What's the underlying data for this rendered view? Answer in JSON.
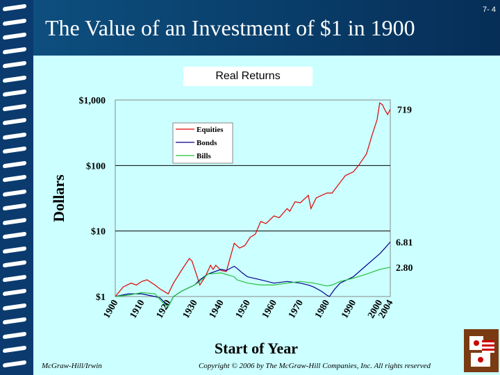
{
  "slide": {
    "title": "The Value of an Investment of $1 in 1900",
    "number": "7- 4",
    "subtitle": "Real Returns",
    "footer_left": "McGraw-Hill/Irwin",
    "footer_right": "Copyright © 2006 by The McGraw-Hill Companies, Inc. All rights reserved"
  },
  "chart_data": {
    "type": "line",
    "xlabel": "Start of Year",
    "ylabel": "Dollars",
    "yscale": "log",
    "ylim": [
      1,
      1000
    ],
    "xlim": [
      1900,
      2004
    ],
    "yticks": [
      "$1",
      "$10",
      "$100",
      "$1,000"
    ],
    "xticks": [
      "1900",
      "1910",
      "1920",
      "1930",
      "1940",
      "1950",
      "1960",
      "1970",
      "1980",
      "1990",
      "2000",
      "2004"
    ],
    "legend": {
      "position": "top-left",
      "entries": [
        "Equities",
        "Bonds",
        "Bills"
      ]
    },
    "end_labels": [
      "719",
      "6.81",
      "2.80"
    ],
    "series": [
      {
        "name": "Equities",
        "color": "#e00000",
        "x": [
          1900,
          1903,
          1906,
          1908,
          1910,
          1912,
          1915,
          1917,
          1920,
          1922,
          1925,
          1928,
          1929,
          1931,
          1932,
          1934,
          1936,
          1937,
          1938,
          1940,
          1942,
          1945,
          1947,
          1949,
          1951,
          1953,
          1955,
          1957,
          1960,
          1962,
          1965,
          1966,
          1968,
          1970,
          1973,
          1974,
          1976,
          1980,
          1982,
          1985,
          1987,
          1990,
          1992,
          1995,
          1997,
          1999,
          2000,
          2001,
          2002,
          2003,
          2004
        ],
        "y": [
          1.0,
          1.4,
          1.6,
          1.5,
          1.7,
          1.8,
          1.5,
          1.3,
          1.1,
          1.6,
          2.5,
          3.8,
          3.5,
          2.0,
          1.5,
          2.0,
          3.0,
          2.6,
          3.0,
          2.5,
          2.4,
          6.5,
          5.5,
          6.0,
          8.0,
          9.0,
          14,
          13,
          17,
          16,
          22,
          20,
          28,
          27,
          35,
          22,
          32,
          38,
          38,
          55,
          70,
          80,
          100,
          150,
          280,
          500,
          900,
          850,
          700,
          600,
          719
        ]
      },
      {
        "name": "Bonds",
        "color": "#00008b",
        "x": [
          1900,
          1905,
          1910,
          1915,
          1917,
          1920,
          1922,
          1925,
          1930,
          1932,
          1935,
          1940,
          1942,
          1945,
          1946,
          1948,
          1950,
          1955,
          1960,
          1965,
          1970,
          1973,
          1975,
          1978,
          1980,
          1981,
          1983,
          1985,
          1990,
          1995,
          2000,
          2002,
          2004
        ],
        "y": [
          1.0,
          1.1,
          1.1,
          1.0,
          0.95,
          0.7,
          1.0,
          1.2,
          1.5,
          1.8,
          2.2,
          2.6,
          2.5,
          2.9,
          2.7,
          2.3,
          2.0,
          1.8,
          1.6,
          1.7,
          1.6,
          1.5,
          1.4,
          1.2,
          1.05,
          1.0,
          1.3,
          1.6,
          2.0,
          3.0,
          4.5,
          5.5,
          6.81
        ]
      },
      {
        "name": "Bills",
        "color": "#22c03a",
        "x": [
          1900,
          1905,
          1910,
          1915,
          1918,
          1920,
          1922,
          1925,
          1930,
          1932,
          1935,
          1940,
          1945,
          1946,
          1950,
          1955,
          1960,
          1965,
          1970,
          1975,
          1980,
          1982,
          1985,
          1990,
          1995,
          2000,
          2004
        ],
        "y": [
          1.0,
          1.05,
          1.15,
          1.1,
          0.8,
          0.7,
          1.0,
          1.2,
          1.5,
          1.7,
          2.2,
          2.3,
          2.0,
          1.8,
          1.6,
          1.5,
          1.5,
          1.6,
          1.7,
          1.6,
          1.45,
          1.5,
          1.7,
          1.9,
          2.2,
          2.6,
          2.8
        ]
      }
    ]
  }
}
